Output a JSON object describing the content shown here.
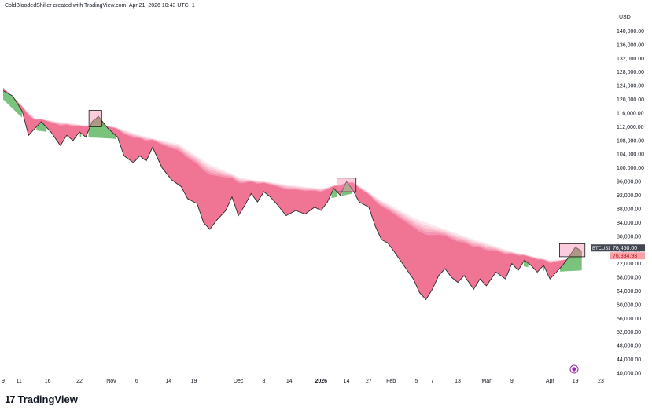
{
  "header": {
    "text": "ColdBloodedShiller created with TradingView.com, Apr 21, 2026 10:43 UTC+1"
  },
  "logo": {
    "mark": "17",
    "text": "TradingView"
  },
  "colors": {
    "green": "#4caf50",
    "red": "#ef5350",
    "pink_band": "#f48fb1",
    "light_band": "#fce4ec",
    "price_line": "#2b2b2b",
    "tag_dark": "#434651",
    "tag_red": "#f7a1a9"
  },
  "chart_data": {
    "type": "area",
    "currency": "USD",
    "symbol_tag": "BTCUSD",
    "last_price_label": "76,450.00",
    "second_price_label": "76,334.93",
    "ylim": [
      40000,
      144000
    ],
    "yticks": [
      "140,000.00",
      "136,000.00",
      "132,000.00",
      "128,000.00",
      "124,000.00",
      "120,000.00",
      "116,000.00",
      "112,000.00",
      "108,000.00",
      "104,000.00",
      "100,000.00",
      "96,000.00",
      "92,000.00",
      "88,000.00",
      "84,000.00",
      "80,000.00",
      "76,000.00",
      "72,000.00",
      "68,000.00",
      "64,000.00",
      "60,000.00",
      "56,000.00",
      "52,000.00",
      "48,000.00",
      "44,000.00",
      "40,000.00"
    ],
    "ytick_values": [
      140000,
      136000,
      132000,
      128000,
      124000,
      120000,
      116000,
      112000,
      108000,
      104000,
      100000,
      96000,
      92000,
      88000,
      84000,
      80000,
      76000,
      72000,
      68000,
      64000,
      60000,
      56000,
      52000,
      48000,
      44000,
      40000
    ],
    "xticks": [
      "9",
      "11",
      "16",
      "22",
      "Nov",
      "6",
      "14",
      "19",
      "Dec",
      "8",
      "14",
      "2026",
      "14",
      "27",
      "Feb",
      "5",
      "7",
      "13",
      "Mar",
      "9",
      "Apr",
      "19",
      "23"
    ],
    "xtick_index": [
      0,
      5,
      14,
      24,
      34,
      42,
      52,
      60,
      74,
      82,
      90,
      100,
      108,
      115,
      122,
      130,
      135,
      143,
      152,
      160,
      172,
      180,
      188
    ],
    "x_count": 190,
    "price": [
      {
        "i": 0,
        "v": 122500
      },
      {
        "i": 3,
        "v": 121000
      },
      {
        "i": 6,
        "v": 116500
      },
      {
        "i": 8,
        "v": 109500
      },
      {
        "i": 10,
        "v": 111500
      },
      {
        "i": 12,
        "v": 113500
      },
      {
        "i": 15,
        "v": 110500
      },
      {
        "i": 18,
        "v": 106500
      },
      {
        "i": 20,
        "v": 109500
      },
      {
        "i": 22,
        "v": 108000
      },
      {
        "i": 24,
        "v": 110500
      },
      {
        "i": 26,
        "v": 109000
      },
      {
        "i": 28,
        "v": 113500
      },
      {
        "i": 30,
        "v": 115000
      },
      {
        "i": 33,
        "v": 111500
      },
      {
        "i": 36,
        "v": 109000
      },
      {
        "i": 38,
        "v": 103500
      },
      {
        "i": 41,
        "v": 101500
      },
      {
        "i": 43,
        "v": 103500
      },
      {
        "i": 45,
        "v": 102000
      },
      {
        "i": 47,
        "v": 106000
      },
      {
        "i": 50,
        "v": 100000
      },
      {
        "i": 53,
        "v": 96500
      },
      {
        "i": 56,
        "v": 94500
      },
      {
        "i": 58,
        "v": 91000
      },
      {
        "i": 61,
        "v": 89500
      },
      {
        "i": 63,
        "v": 84000
      },
      {
        "i": 65,
        "v": 82000
      },
      {
        "i": 67,
        "v": 84500
      },
      {
        "i": 70,
        "v": 87500
      },
      {
        "i": 72,
        "v": 91500
      },
      {
        "i": 74,
        "v": 86000
      },
      {
        "i": 76,
        "v": 89000
      },
      {
        "i": 78,
        "v": 92500
      },
      {
        "i": 80,
        "v": 90000
      },
      {
        "i": 82,
        "v": 93000
      },
      {
        "i": 84,
        "v": 91500
      },
      {
        "i": 86,
        "v": 89500
      },
      {
        "i": 89,
        "v": 86000
      },
      {
        "i": 92,
        "v": 87500
      },
      {
        "i": 95,
        "v": 86500
      },
      {
        "i": 98,
        "v": 88500
      },
      {
        "i": 100,
        "v": 87500
      },
      {
        "i": 102,
        "v": 90000
      },
      {
        "i": 104,
        "v": 94000
      },
      {
        "i": 106,
        "v": 92000
      },
      {
        "i": 108,
        "v": 96000
      },
      {
        "i": 110,
        "v": 93500
      },
      {
        "i": 112,
        "v": 90000
      },
      {
        "i": 115,
        "v": 88500
      },
      {
        "i": 117,
        "v": 83000
      },
      {
        "i": 119,
        "v": 79000
      },
      {
        "i": 121,
        "v": 78000
      },
      {
        "i": 123,
        "v": 75500
      },
      {
        "i": 126,
        "v": 71500
      },
      {
        "i": 129,
        "v": 67500
      },
      {
        "i": 131,
        "v": 63500
      },
      {
        "i": 133,
        "v": 61500
      },
      {
        "i": 135,
        "v": 64500
      },
      {
        "i": 137,
        "v": 68500
      },
      {
        "i": 139,
        "v": 70500
      },
      {
        "i": 141,
        "v": 68000
      },
      {
        "i": 143,
        "v": 66500
      },
      {
        "i": 145,
        "v": 68500
      },
      {
        "i": 148,
        "v": 64500
      },
      {
        "i": 150,
        "v": 67500
      },
      {
        "i": 152,
        "v": 65500
      },
      {
        "i": 155,
        "v": 69500
      },
      {
        "i": 158,
        "v": 67500
      },
      {
        "i": 160,
        "v": 72000
      },
      {
        "i": 162,
        "v": 70000
      },
      {
        "i": 164,
        "v": 73000
      },
      {
        "i": 166,
        "v": 71500
      },
      {
        "i": 168,
        "v": 69500
      },
      {
        "i": 170,
        "v": 71500
      },
      {
        "i": 172,
        "v": 67500
      },
      {
        "i": 174,
        "v": 69500
      },
      {
        "i": 176,
        "v": 71500
      },
      {
        "i": 178,
        "v": 74000
      },
      {
        "i": 180,
        "v": 76800
      },
      {
        "i": 182,
        "v": 75600
      }
    ],
    "band_top": [
      {
        "i": 0,
        "v": 123500
      },
      {
        "i": 10,
        "v": 114500
      },
      {
        "i": 25,
        "v": 112500
      },
      {
        "i": 35,
        "v": 112000
      },
      {
        "i": 45,
        "v": 109000
      },
      {
        "i": 55,
        "v": 107000
      },
      {
        "i": 65,
        "v": 101000
      },
      {
        "i": 75,
        "v": 97000
      },
      {
        "i": 90,
        "v": 95000
      },
      {
        "i": 100,
        "v": 94000
      },
      {
        "i": 110,
        "v": 96000
      },
      {
        "i": 118,
        "v": 91000
      },
      {
        "i": 130,
        "v": 85000
      },
      {
        "i": 145,
        "v": 80000
      },
      {
        "i": 160,
        "v": 75500
      },
      {
        "i": 172,
        "v": 73000
      },
      {
        "i": 182,
        "v": 73500
      }
    ],
    "highlights": [
      {
        "i0": 27,
        "i1": 31,
        "lo": 112000,
        "hi": 116800
      },
      {
        "i0": 105,
        "i1": 111,
        "lo": 93000,
        "hi": 97000
      },
      {
        "i0": 175,
        "i1": 183,
        "lo": 74000,
        "hi": 77800
      }
    ],
    "watermark_icon": "tradingview-replay-icon"
  }
}
